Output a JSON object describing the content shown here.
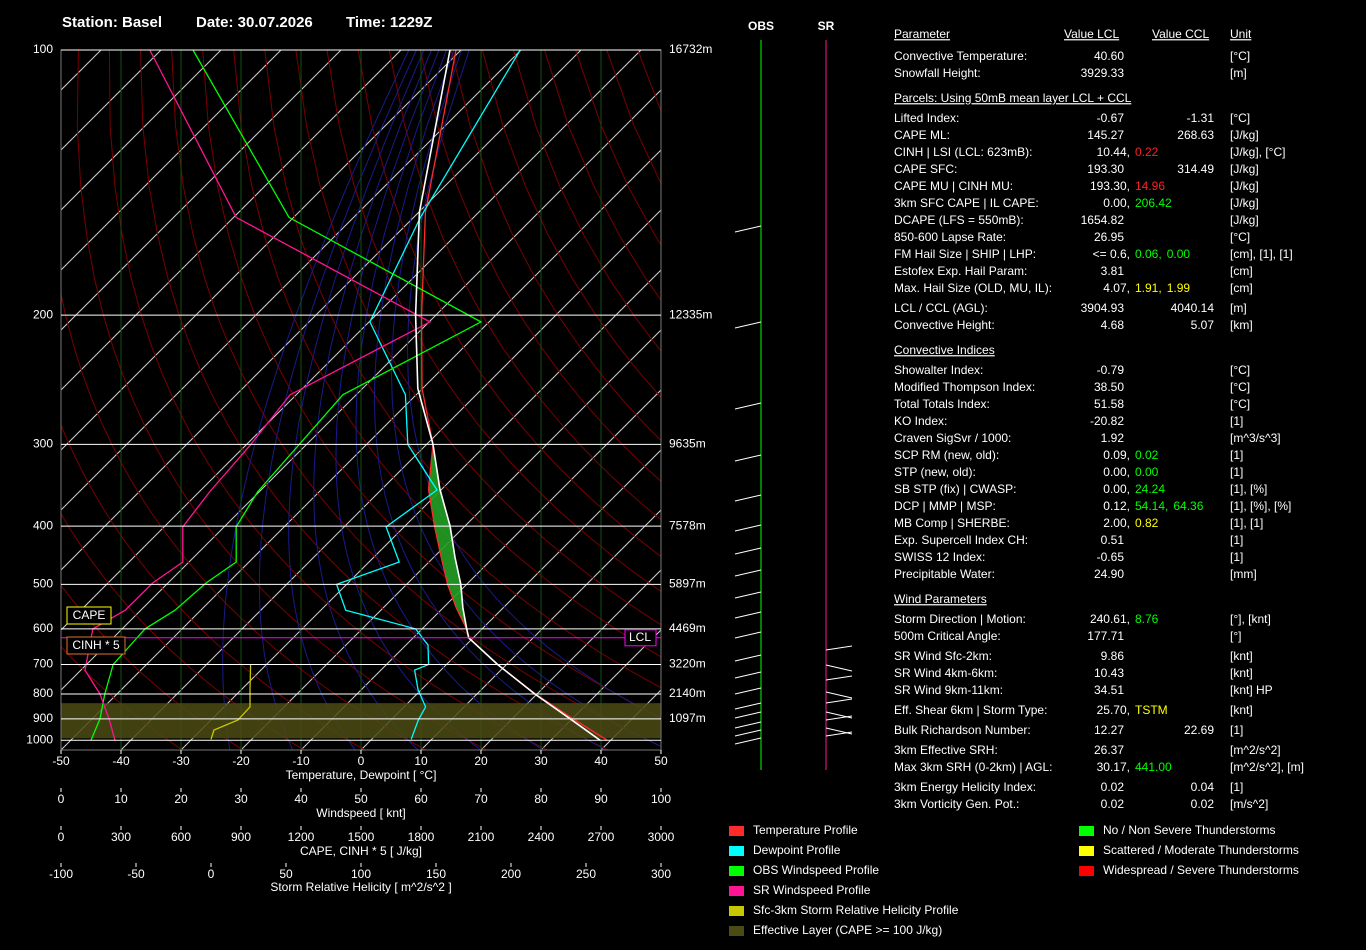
{
  "header": {
    "station": "Station: Basel",
    "date": "Date: 30.07.2026",
    "time": "Time: 1229Z"
  },
  "chart_data": {
    "type": "skewt",
    "ylim": [
      100,
      1050
    ],
    "yticks": [
      100,
      200,
      300,
      400,
      500,
      600,
      700,
      800,
      900,
      1000
    ],
    "height_labels": [
      "16732m",
      "12335m",
      "9635m",
      "7578m",
      "5897m",
      "4469m",
      "3220m",
      "2140m",
      "1097m"
    ],
    "xlim": [
      -50,
      50
    ],
    "xticks": [
      -50,
      -40,
      -30,
      -20,
      -10,
      0,
      10,
      20,
      30,
      40,
      50
    ],
    "xlabel": "Temperature, Dewpoint [ °C]",
    "windspeed_axis": {
      "xlim": [
        0,
        100
      ],
      "xticks": [
        0,
        10,
        20,
        30,
        40,
        50,
        60,
        70,
        80,
        90,
        100
      ],
      "label": "Windspeed [ knt]",
      "grid_color": "#0f4f0f"
    },
    "cape_axis": {
      "xlim": [
        0,
        3000
      ],
      "xticks": [
        0,
        300,
        600,
        900,
        1200,
        1500,
        1800,
        2100,
        2400,
        2700,
        3000
      ],
      "label": "CAPE, CINH * 5 [ J/kg]"
    },
    "srh_axis": {
      "xlim": [
        -100,
        300
      ],
      "xticks": [
        -100,
        -50,
        0,
        50,
        100,
        150,
        200,
        250,
        300
      ],
      "label": "Storm Relative Helicity [ m^2/s^2 ]"
    },
    "series": [
      {
        "name": "Temperature Profile",
        "color": "#ff2a2a",
        "axis": "temperature",
        "pressure": [
          100,
          150,
          200,
          250,
          300,
          350,
          400,
          450,
          500,
          550,
          600,
          623,
          700,
          800,
          900,
          1000
        ],
        "values": [
          -60,
          -47.5,
          -37,
          -29,
          -21.1,
          -17,
          -12,
          -7.5,
          -3.5,
          0.5,
          4.5,
          5.8,
          13.5,
          23,
          32,
          40
        ]
      },
      {
        "name": "Dewpoint Profile",
        "color": "#00ffff",
        "axis": "temperature",
        "pressure": [
          100,
          152,
          204,
          255,
          300,
          351,
          401,
          458,
          500,
          555,
          600,
          643,
          700,
          718,
          785,
          850,
          905,
          995
        ],
        "values": [
          -49.3,
          -47.8,
          -44.9,
          -31.1,
          -25.3,
          -15.5,
          -20,
          -14,
          -22,
          -17.7,
          -4,
          -0.2,
          2,
          0.3,
          3,
          6.1,
          6.3,
          7.2
        ]
      },
      {
        "name": "OBS Windspeed Profile",
        "color": "#00ff00",
        "axis": "windspeed",
        "pressure": [
          100,
          152,
          204,
          255,
          353,
          401,
          458,
          497,
          555,
          600,
          700,
          800,
          900,
          1000
        ],
        "values": [
          22,
          38,
          70,
          47,
          32.8,
          29.2,
          29.2,
          24.2,
          19,
          14,
          8.7,
          7.3,
          6.5,
          5
        ]
      },
      {
        "name": "SR Windspeed Profile",
        "color": "#ff1493",
        "axis": "windspeed",
        "pressure": [
          100,
          152,
          204,
          255,
          301,
          353,
          401,
          458,
          497,
          555,
          600,
          718,
          800,
          900,
          1000
        ],
        "values": [
          14.8,
          29.2,
          61.5,
          38.2,
          31.5,
          24.8,
          20.3,
          20.3,
          15.3,
          10.7,
          5.3,
          4,
          6.5,
          8,
          9
        ]
      },
      {
        "name": "Sfc-3km Storm Relative Helicity Profile",
        "color": "#c8c800",
        "axis": "srh",
        "pressure": [
          995,
          950,
          905,
          850,
          785,
          700
        ],
        "values": [
          0,
          2,
          18,
          26,
          26,
          26.4
        ]
      }
    ],
    "parcel": {
      "color": "#ffffff",
      "fill": "#22a022",
      "pressure": [
        100,
        150,
        200,
        250,
        300,
        350,
        400,
        450,
        500,
        550,
        600,
        623,
        700,
        800,
        900,
        1000
      ],
      "values": [
        -61,
        -48.5,
        -38,
        -29.7,
        -21.1,
        -15.1,
        -9.4,
        -5.2,
        -1.3,
        1.6,
        4.5,
        5.8,
        13.5,
        22.9,
        31.5,
        38.8
      ]
    },
    "effective_layer": {
      "name": "Effective Layer (CAPE >= 100 J/kg)",
      "color": "#4b4b14",
      "pressure": [
        990,
        835
      ]
    },
    "lcl": {
      "label": "LCL",
      "pressure": 623,
      "color": "#ff00ff"
    },
    "cape_label": {
      "label": "CAPE",
      "color": "#ffff00"
    },
    "cinh_label": {
      "label": "CINH * 5",
      "color": "#e07030"
    },
    "wind_columns": [
      {
        "name": "OBS",
        "color": "#00ff00"
      },
      {
        "name": "SR",
        "color": "#ff1493"
      }
    ],
    "severity_legend": [
      {
        "name": "No / Non Severe Thunderstorms",
        "color": "#00ff00"
      },
      {
        "name": "Scattered / Moderate Thunderstorms",
        "color": "#ffff00"
      },
      {
        "name": "Widespread / Severe Thunderstorms",
        "color": "#ff0000"
      }
    ]
  },
  "table": {
    "columns": [
      "Parameter",
      "Value LCL",
      "Value CCL",
      "Unit"
    ],
    "sections": [
      {
        "rows": [
          {
            "label": "Convective Temperature:",
            "lcl": [
              {
                "text": "40.60",
                "color": "#ff2020"
              }
            ],
            "unit": "[°C]"
          },
          {
            "label": "Snowfall Height:",
            "lcl": [
              {
                "text": "3929.33",
                "color": "#ffffff"
              }
            ],
            "unit": "[m]"
          }
        ]
      },
      {
        "title": "Parcels: Using 50mB mean layer LCL + CCL",
        "rows": [
          {
            "label": "Lifted Index:",
            "lcl": [
              {
                "text": "-0.67",
                "color": "#ff2020"
              }
            ],
            "ccl": [
              {
                "text": "-1.31",
                "color": "#ffff00"
              }
            ],
            "unit": "[°C]"
          },
          {
            "label": "CAPE ML:",
            "lcl": [
              {
                "text": "145.27",
                "color": "#ffff00"
              }
            ],
            "ccl": [
              {
                "text": "268.63",
                "color": "#00ff00"
              }
            ],
            "unit": "[J/kg]"
          },
          {
            "label": "CINH | LSI (LCL: 623mB):",
            "lcl": [
              {
                "text": "10.44,",
                "color": "#ff2020"
              },
              {
                "text": "0.22",
                "color": "#ff2020"
              }
            ],
            "unit": "[J/kg], [°C]"
          },
          {
            "label": "CAPE SFC:",
            "lcl": [
              {
                "text": "193.30",
                "color": "#00ff00"
              }
            ],
            "ccl": [
              {
                "text": "314.49",
                "color": "#ffff00"
              }
            ],
            "unit": "[J/kg]"
          },
          {
            "label": "CAPE MU | CINH MU:",
            "lcl": [
              {
                "text": "193.30,",
                "color": "#00ff00"
              },
              {
                "text": "14.96",
                "color": "#ff2020"
              }
            ],
            "unit": "[J/kg]"
          },
          {
            "label": "3km SFC CAPE | IL CAPE:",
            "lcl": [
              {
                "text": "0.00,",
                "color": "#00ff00"
              },
              {
                "text": "206.42",
                "color": "#00ff00"
              }
            ],
            "unit": "[J/kg]"
          },
          {
            "label": "DCAPE (LFS = 550mB):",
            "lcl": [
              {
                "text": "1654.82",
                "color": "#ff2020"
              }
            ],
            "unit": "[J/kg]"
          },
          {
            "label": "850-600 Lapse Rate:",
            "lcl": [
              {
                "text": "26.95",
                "color": "#ff2020"
              }
            ],
            "unit": "[°C]"
          },
          {
            "label": "FM Hail Size | SHIP | LHP:",
            "lcl": [
              {
                "text": "<= 0.6,",
                "color": "#ffff00"
              },
              {
                "text": "0.06,",
                "color": "#00ff00"
              },
              {
                "text": "0.00",
                "color": "#00ff00"
              }
            ],
            "unit": "[cm], [1], [1]"
          },
          {
            "label": "Estofex Exp. Hail Param:",
            "lcl": [
              {
                "text": "3.81",
                "color": "#ff2020"
              }
            ],
            "unit": "[cm]"
          },
          {
            "label": "Max. Hail Size (OLD, MU, IL):",
            "lcl": [
              {
                "text": "4.07,",
                "color": "#ff2020"
              },
              {
                "text": "1.91,",
                "color": "#ffff00"
              },
              {
                "text": "1.99",
                "color": "#ffff00"
              }
            ],
            "unit": "[cm]"
          },
          {
            "label": "LCL / CCL (AGL):",
            "lcl": [
              {
                "text": "3904.93",
                "color": "#00ff00"
              }
            ],
            "ccl": [
              {
                "text": "4040.14",
                "color": "#00ff00"
              }
            ],
            "unit": "[m]"
          },
          {
            "label": "Convective Height:",
            "lcl": [
              {
                "text": "4.68",
                "color": "#ffff00"
              }
            ],
            "ccl": [
              {
                "text": "5.07",
                "color": "#ffff00"
              }
            ],
            "unit": "[km]"
          }
        ]
      },
      {
        "title": "Convective Indices",
        "rows": [
          {
            "label": "Showalter Index:",
            "lcl": [
              {
                "text": "-0.79",
                "color": "#ff2020"
              }
            ],
            "unit": "[°C]"
          },
          {
            "label": "Modified Thompson Index:",
            "lcl": [
              {
                "text": "38.50",
                "color": "#ff2020"
              }
            ],
            "unit": "[°C]"
          },
          {
            "label": "Total Totals Index:",
            "lcl": [
              {
                "text": "51.58",
                "color": "#ff2020"
              }
            ],
            "unit": "[°C]"
          },
          {
            "label": "KO Index:",
            "lcl": [
              {
                "text": "-20.82",
                "color": "#ff2020"
              }
            ],
            "unit": "[1]"
          },
          {
            "label": "Craven SigSvr / 1000:",
            "lcl": [
              {
                "text": "1.92",
                "color": "#ffff00"
              }
            ],
            "unit": "[m^3/s^3]"
          },
          {
            "label": "SCP RM (new, old):",
            "lcl": [
              {
                "text": "0.09,",
                "color": "#00ff00"
              },
              {
                "text": "0.02",
                "color": "#00ff00"
              }
            ],
            "unit": "[1]"
          },
          {
            "label": "STP (new, old):",
            "lcl": [
              {
                "text": "0.00,",
                "color": "#00ff00"
              },
              {
                "text": "0.00",
                "color": "#00ff00"
              }
            ],
            "unit": "[1]"
          },
          {
            "label": "SB STP (fix) | CWASP:",
            "lcl": [
              {
                "text": "0.00,",
                "color": "#00ff00"
              },
              {
                "text": "24.24",
                "color": "#00ff00"
              }
            ],
            "unit": "[1], [%]"
          },
          {
            "label": "DCP | MMP | MSP:",
            "lcl": [
              {
                "text": "0.12,",
                "color": "#00ff00"
              },
              {
                "text": "54.14,",
                "color": "#00ff00"
              },
              {
                "text": "64.36",
                "color": "#00ff00"
              }
            ],
            "unit": "[1], [%], [%]"
          },
          {
            "label": "MB Comp | SHERBE:",
            "lcl": [
              {
                "text": "2.00,",
                "color": "#00ff00"
              },
              {
                "text": "0.82",
                "color": "#ffff00"
              }
            ],
            "unit": "[1], [1]"
          },
          {
            "label": "Exp. Supercell Index CH:",
            "lcl": [
              {
                "text": "0.51",
                "color": "#00ff00"
              }
            ],
            "unit": "[1]"
          },
          {
            "label": "SWISS 12 Index:",
            "lcl": [
              {
                "text": "-0.65",
                "color": "#ff2020"
              }
            ],
            "unit": "[1]"
          },
          {
            "label": "Precipitable Water:",
            "lcl": [
              {
                "text": "24.90",
                "color": "#ffff00"
              }
            ],
            "unit": "[mm]"
          }
        ]
      },
      {
        "title": "Wind Parameters",
        "rows": [
          {
            "label": "Storm Direction | Motion:",
            "lcl": [
              {
                "text": "240.61,",
                "color": "#ffffff"
              },
              {
                "text": "8.76",
                "color": "#00ff00"
              }
            ],
            "unit": "[°], [knt]"
          },
          {
            "label": "500m Critical Angle:",
            "lcl": [
              {
                "text": "177.71",
                "color": "#00ff00"
              }
            ],
            "unit": "[°]"
          },
          {
            "label": "SR Wind Sfc-2km:",
            "lcl": [
              {
                "text": "9.86",
                "color": "#00ff00"
              }
            ],
            "unit": "[knt]"
          },
          {
            "label": "SR Wind 4km-6km:",
            "lcl": [
              {
                "text": "10.43",
                "color": "#00ff00"
              }
            ],
            "unit": "[knt]"
          },
          {
            "label": "SR Wind 9km-11km:",
            "lcl": [
              {
                "text": "34.51",
                "color": "#ffff00"
              }
            ],
            "unit": "[knt] HP"
          },
          {
            "label": "Eff. Shear 6km | Storm Type:",
            "lcl": [
              {
                "text": "25.70,",
                "color": "#ffff00"
              },
              {
                "text": "TSTM",
                "color": "#ffff00"
              }
            ],
            "unit": "[knt]"
          },
          {
            "label": "Bulk Richardson Number:",
            "lcl": [
              {
                "text": "12.27",
                "color": "#ffff00"
              }
            ],
            "ccl": [
              {
                "text": "22.69",
                "color": "#ffff00"
              }
            ],
            "unit": "[1]"
          },
          {
            "label": "3km Effective SRH:",
            "lcl": [
              {
                "text": "26.37",
                "color": "#00ff00"
              }
            ],
            "unit": "[m^2/s^2]"
          },
          {
            "label": "Max 3km SRH (0-2km) | AGL:",
            "lcl": [
              {
                "text": "30.17,",
                "color": "#00ff00"
              },
              {
                "text": "441.00",
                "color": "#00ff00"
              }
            ],
            "unit": "[m^2/s^2], [m]"
          },
          {
            "label": "3km Energy Helicity Index:",
            "lcl": [
              {
                "text": "0.02",
                "color": "#00ff00"
              }
            ],
            "ccl": [
              {
                "text": "0.04",
                "color": "#00ff00"
              }
            ],
            "unit": "[1]"
          },
          {
            "label": "3km Vorticity Gen. Pot.:",
            "lcl": [
              {
                "text": "0.02",
                "color": "#00ff00"
              }
            ],
            "ccl": [
              {
                "text": "0.02",
                "color": "#00ff00"
              }
            ],
            "unit": "[m/s^2]"
          }
        ]
      }
    ]
  }
}
